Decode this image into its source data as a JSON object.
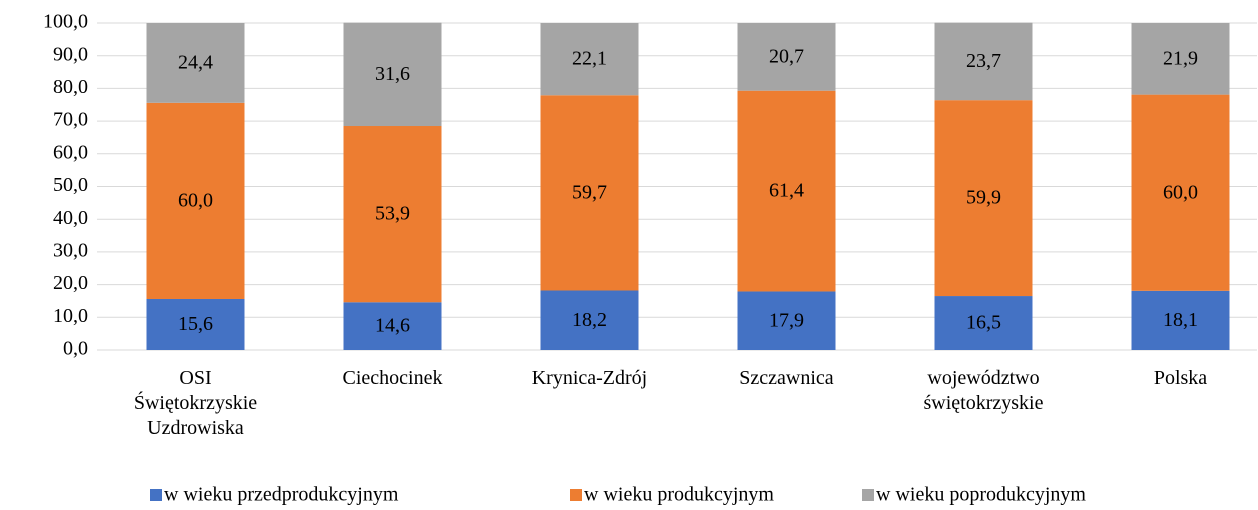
{
  "chart_data": {
    "type": "stacked-bar",
    "categories": [
      "OSI Świętokrzyskie Uzdrowiska",
      "Ciechocinek",
      "Krynica-Zdrój",
      "Szczawnica",
      "województwo świętokrzyskie",
      "Polska"
    ],
    "series": [
      {
        "name": "w wieku przedprodukcyjnym",
        "color": "#4472c4",
        "values": [
          15.6,
          14.6,
          18.2,
          17.9,
          16.5,
          18.1
        ],
        "value_labels": [
          "15,6",
          "14,6",
          "18,2",
          "17,9",
          "16,5",
          "18,1"
        ]
      },
      {
        "name": "w wieku produkcyjnym",
        "color": "#ed7d31",
        "values": [
          60.0,
          53.9,
          59.7,
          61.4,
          59.9,
          60.0
        ],
        "value_labels": [
          "60,0",
          "53,9",
          "59,7",
          "61,4",
          "59,9",
          "60,0"
        ]
      },
      {
        "name": "w wieku poprodukcyjnym",
        "color": "#a5a5a5",
        "values": [
          24.4,
          31.6,
          22.1,
          20.7,
          23.7,
          21.9
        ],
        "value_labels": [
          "24,4",
          "31,6",
          "22,1",
          "20,7",
          "23,7",
          "21,9"
        ]
      }
    ],
    "ylim": [
      0,
      100
    ],
    "yticks": [
      {
        "value": 0,
        "label": "0,0"
      },
      {
        "value": 10,
        "label": "10,0"
      },
      {
        "value": 20,
        "label": "20,0"
      },
      {
        "value": 30,
        "label": "30,0"
      },
      {
        "value": 40,
        "label": "40,0"
      },
      {
        "value": 50,
        "label": "50,0"
      },
      {
        "value": 60,
        "label": "60,0"
      },
      {
        "value": 70,
        "label": "70,0"
      },
      {
        "value": 80,
        "label": "80,0"
      },
      {
        "value": 90,
        "label": "90,0"
      },
      {
        "value": 100,
        "label": "100,0"
      }
    ],
    "grid": true,
    "legend": "bottom"
  }
}
